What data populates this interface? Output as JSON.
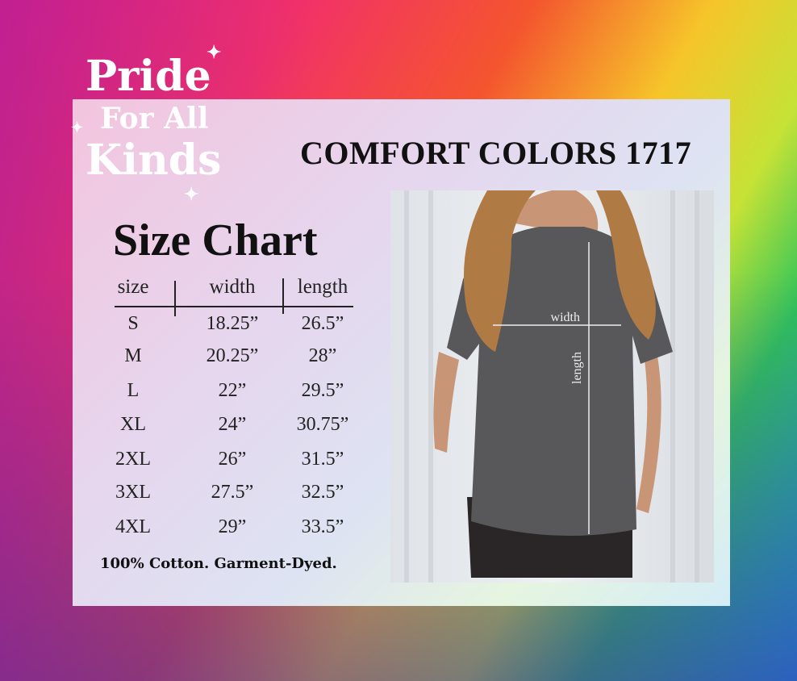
{
  "logo": {
    "line1": "Pride",
    "line2": "For All",
    "line3": "Kinds"
  },
  "brand": "COMFORT COLORS 1717",
  "title": "Size Chart",
  "table": {
    "headers": [
      "size",
      "width",
      "length"
    ],
    "rows": [
      [
        "S",
        "18.25”",
        "26.5”"
      ],
      [
        "M",
        "20.25”",
        "28”"
      ],
      [
        "L",
        "22”",
        "29.5”"
      ],
      [
        "XL",
        "24”",
        "30.75”"
      ],
      [
        "2XL",
        "26”",
        "31.5”"
      ],
      [
        "3XL",
        "27.5”",
        "32.5”"
      ],
      [
        "4XL",
        "29”",
        "33.5”"
      ]
    ]
  },
  "footer": "100% Cotton. Garment-Dyed.",
  "photo": {
    "width_label": "width",
    "length_label": "length",
    "shirt_color": "#58585a"
  }
}
